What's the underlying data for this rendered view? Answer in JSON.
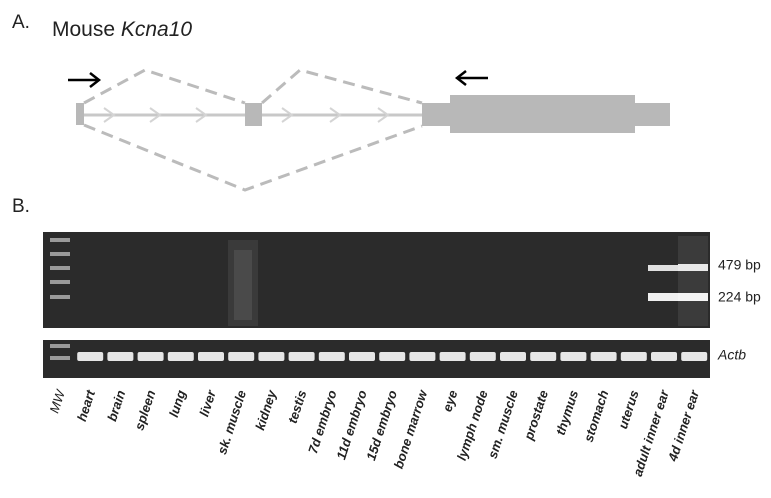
{
  "panel_a": {
    "label": "A.",
    "title": "Mouse",
    "gene": "Kcna10"
  },
  "panel_b": {
    "label": "B.",
    "lanes": [
      "MW",
      "heart",
      "brain",
      "spleen",
      "lung",
      "liver",
      "sk. muscle",
      "kidney",
      "testis",
      "7d embryo",
      "11d embryo",
      "15d embryo",
      "bone marrow",
      "eye",
      "lymph node",
      "sm. muscle",
      "prostate",
      "thymus",
      "stomach",
      "uterus",
      "adult inner ear",
      "4d inner ear"
    ],
    "band_labels": [
      "479 bp",
      "224 bp"
    ],
    "control_label": "Actb"
  }
}
